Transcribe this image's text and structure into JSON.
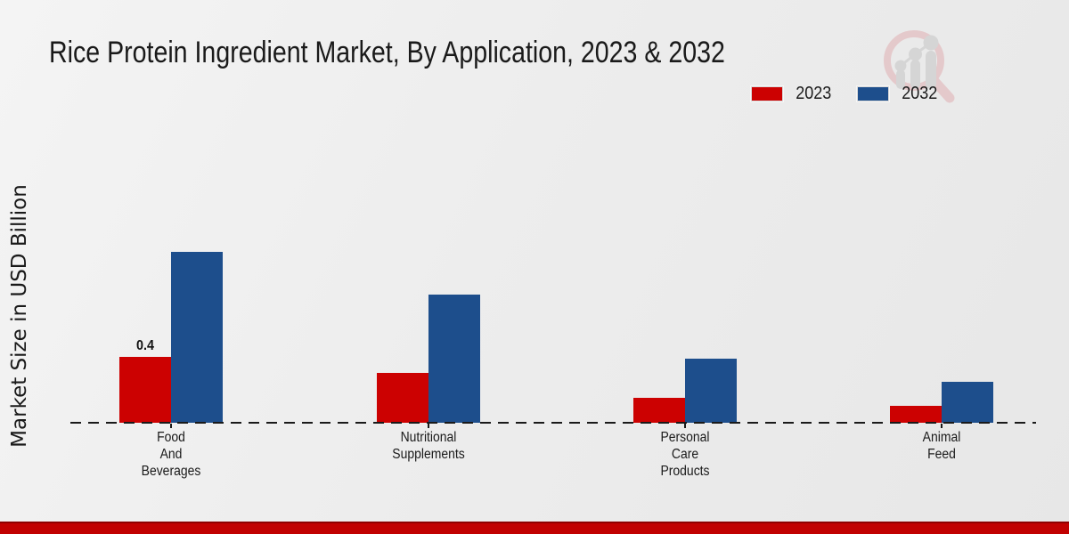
{
  "header": {
    "title": "Rice Protein Ingredient Market, By Application, 2023 & 2032"
  },
  "legend": {
    "items": [
      {
        "label": "2023",
        "color": "#cc0101"
      },
      {
        "label": "2032",
        "color": "#1d4e8c"
      }
    ]
  },
  "chart_data": {
    "type": "bar",
    "title": "Rice Protein Ingredient Market, By Application, 2023 & 2032",
    "ylabel": "Market Size in USD Billion",
    "xlabel": "",
    "ylim": [
      0,
      1.2
    ],
    "grid": false,
    "legend_position": "top-right",
    "categories": [
      {
        "id": "food-and-beverages",
        "label_lines": [
          "Food",
          "And",
          "Beverages"
        ]
      },
      {
        "id": "nutritional-supplements",
        "label_lines": [
          "Nutritional",
          "Supplements"
        ]
      },
      {
        "id": "personal-care-products",
        "label_lines": [
          "Personal",
          "Care",
          "Products"
        ]
      },
      {
        "id": "animal-feed",
        "label_lines": [
          "Animal",
          "Feed"
        ]
      }
    ],
    "series": [
      {
        "name": "2023",
        "color": "#cc0101",
        "values": [
          0.4,
          0.3,
          0.15,
          0.1
        ]
      },
      {
        "name": "2032",
        "color": "#1d4e8c",
        "values": [
          1.04,
          0.78,
          0.39,
          0.25
        ]
      }
    ],
    "bar_label": {
      "text": "0.4",
      "series_index": 0,
      "category_index": 0
    }
  },
  "footer": {
    "accent_color": "#c10101"
  }
}
